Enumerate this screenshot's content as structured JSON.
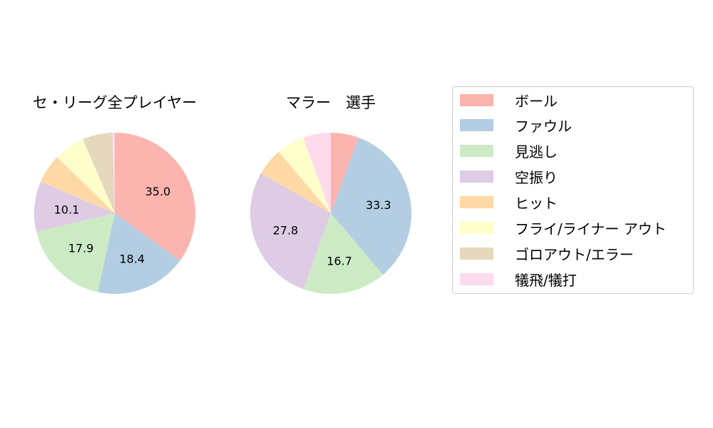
{
  "chart_data": [
    {
      "type": "pie",
      "title": "セ・リーグ全プレイヤー",
      "categories": [
        "ボール",
        "ファウル",
        "見逃し",
        "空振り",
        "ヒット",
        "フライ/ライナー アウト",
        "ゴロアウト/エラー",
        "犠飛/犠打"
      ],
      "values": [
        35.0,
        18.4,
        17.9,
        10.1,
        5.9,
        6.2,
        6.0,
        0.5
      ],
      "labels_shown": [
        "35.0",
        "18.4",
        "17.9",
        "10.1",
        "",
        "",
        "",
        ""
      ],
      "start_angle": 90,
      "direction": "clockwise"
    },
    {
      "type": "pie",
      "title": "マラー　選手",
      "categories": [
        "ボール",
        "ファウル",
        "見逃し",
        "空振り",
        "ヒット",
        "フライ/ライナー アウト",
        "ゴロアウト/エラー",
        "犠飛/犠打"
      ],
      "values": [
        5.6,
        33.3,
        16.7,
        27.8,
        5.6,
        5.6,
        0.0,
        5.6
      ],
      "labels_shown": [
        "",
        "33.3",
        "16.7",
        "27.8",
        "",
        "",
        "",
        ""
      ],
      "start_angle": 90,
      "direction": "clockwise"
    }
  ],
  "legend": {
    "position": "right",
    "items": [
      {
        "label": "ボール",
        "color": "#fbb4ae"
      },
      {
        "label": "ファウル",
        "color": "#b3cde3"
      },
      {
        "label": "見逃し",
        "color": "#ccebc5"
      },
      {
        "label": "空振り",
        "color": "#decbe4"
      },
      {
        "label": "ヒット",
        "color": "#fed9a6"
      },
      {
        "label": "フライ/ライナー アウト",
        "color": "#ffffcc"
      },
      {
        "label": "ゴロアウト/エラー",
        "color": "#e5d8bd"
      },
      {
        "label": "犠飛/犠打",
        "color": "#fddaec"
      }
    ]
  }
}
